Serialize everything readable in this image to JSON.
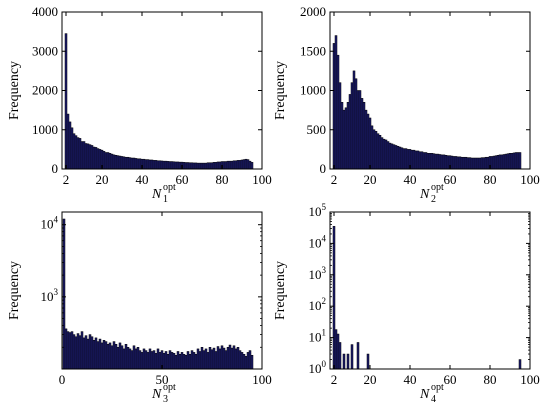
{
  "chart_data": [
    {
      "type": "bar",
      "ylabel": "Frequency",
      "xlabel_base": "N",
      "xlabel_sub": "1",
      "xlabel_sup": "opt",
      "xlim": [
        0,
        100
      ],
      "ylim": [
        0,
        4000
      ],
      "yscale": "linear",
      "xticks": [
        "2",
        "20",
        "40",
        "60",
        "80",
        "100"
      ],
      "yticks": [
        "0",
        "1000",
        "2000",
        "3000",
        "4000"
      ],
      "bar_color": "#1c1c6e",
      "x": [
        2,
        3,
        4,
        5,
        6,
        7,
        8,
        9,
        10,
        11,
        12,
        13,
        14,
        15,
        16,
        17,
        18,
        19,
        20,
        21,
        22,
        23,
        24,
        25,
        26,
        27,
        28,
        29,
        30,
        31,
        32,
        33,
        34,
        35,
        36,
        37,
        38,
        39,
        40,
        41,
        42,
        43,
        44,
        45,
        46,
        47,
        48,
        49,
        50,
        51,
        52,
        53,
        54,
        55,
        56,
        57,
        58,
        59,
        60,
        61,
        62,
        63,
        64,
        65,
        66,
        67,
        68,
        69,
        70,
        71,
        72,
        73,
        74,
        75,
        76,
        77,
        78,
        79,
        80,
        81,
        82,
        83,
        84,
        85,
        86,
        87,
        88,
        89,
        90,
        91,
        92,
        93,
        94,
        95
      ],
      "values": [
        3450,
        1400,
        1200,
        1050,
        900,
        850,
        800,
        780,
        700,
        700,
        650,
        640,
        620,
        600,
        560,
        550,
        520,
        500,
        480,
        450,
        420,
        420,
        400,
        380,
        360,
        350,
        340,
        330,
        320,
        310,
        300,
        300,
        290,
        280,
        280,
        270,
        260,
        260,
        250,
        250,
        240,
        240,
        230,
        230,
        220,
        220,
        210,
        210,
        205,
        200,
        200,
        195,
        190,
        190,
        185,
        180,
        180,
        175,
        175,
        170,
        165,
        165,
        160,
        160,
        155,
        155,
        150,
        150,
        150,
        150,
        150,
        160,
        160,
        160,
        170,
        170,
        180,
        180,
        190,
        190,
        190,
        200,
        200,
        200,
        210,
        210,
        220,
        220,
        230,
        240,
        250,
        240,
        200,
        170
      ]
    },
    {
      "type": "bar",
      "ylabel": "Frequency",
      "xlabel_base": "N",
      "xlabel_sub": "2",
      "xlabel_sup": "opt",
      "xlim": [
        0,
        100
      ],
      "ylim": [
        0,
        2000
      ],
      "yscale": "linear",
      "xticks": [
        "2",
        "20",
        "40",
        "60",
        "80",
        "100"
      ],
      "yticks": [
        "0",
        "500",
        "1000",
        "1500",
        "2000"
      ],
      "bar_color": "#1c1c6e",
      "x": [
        2,
        3,
        4,
        5,
        6,
        7,
        8,
        9,
        10,
        11,
        12,
        13,
        14,
        15,
        16,
        17,
        18,
        19,
        20,
        21,
        22,
        23,
        24,
        25,
        26,
        27,
        28,
        29,
        30,
        31,
        32,
        33,
        34,
        35,
        36,
        37,
        38,
        39,
        40,
        41,
        42,
        43,
        44,
        45,
        46,
        47,
        48,
        49,
        50,
        51,
        52,
        53,
        54,
        55,
        56,
        57,
        58,
        59,
        60,
        61,
        62,
        63,
        64,
        65,
        66,
        67,
        68,
        69,
        70,
        71,
        72,
        73,
        74,
        75,
        76,
        77,
        78,
        79,
        80,
        81,
        82,
        83,
        84,
        85,
        86,
        87,
        88,
        89,
        90,
        91,
        92,
        93,
        94,
        95
      ],
      "values": [
        1600,
        1700,
        1450,
        1100,
        850,
        750,
        780,
        850,
        950,
        1100,
        1250,
        1150,
        1000,
        1000,
        900,
        850,
        750,
        700,
        650,
        550,
        500,
        480,
        450,
        430,
        400,
        380,
        370,
        350,
        330,
        320,
        310,
        300,
        290,
        280,
        270,
        260,
        260,
        250,
        250,
        240,
        240,
        230,
        230,
        220,
        220,
        210,
        210,
        200,
        200,
        200,
        195,
        190,
        190,
        185,
        180,
        180,
        175,
        170,
        170,
        165,
        160,
        160,
        155,
        155,
        150,
        150,
        150,
        145,
        145,
        140,
        140,
        140,
        140,
        140,
        145,
        145,
        150,
        150,
        160,
        160,
        165,
        170,
        175,
        180,
        180,
        185,
        190,
        195,
        200,
        200,
        205,
        210,
        210,
        210
      ]
    },
    {
      "type": "bar",
      "ylabel": "Frequency",
      "xlabel_base": "N",
      "xlabel_sub": "3",
      "xlabel_sup": "opt",
      "xlim": [
        0,
        100
      ],
      "ylim": [
        100,
        15000
      ],
      "yscale": "log",
      "xticks": [
        "0",
        "50",
        "100"
      ],
      "yticks": [
        {
          "base": "10",
          "exp": "3",
          "value": 1000
        },
        {
          "base": "10",
          "exp": "4",
          "value": 10000
        }
      ],
      "bar_color": "#1c1c6e",
      "x": [
        1,
        2,
        3,
        4,
        5,
        6,
        7,
        8,
        9,
        10,
        11,
        12,
        13,
        14,
        15,
        16,
        17,
        18,
        19,
        20,
        21,
        22,
        23,
        24,
        25,
        26,
        27,
        28,
        29,
        30,
        31,
        32,
        33,
        34,
        35,
        36,
        37,
        38,
        39,
        40,
        41,
        42,
        43,
        44,
        45,
        46,
        47,
        48,
        49,
        50,
        51,
        52,
        53,
        54,
        55,
        56,
        57,
        58,
        59,
        60,
        61,
        62,
        63,
        64,
        65,
        66,
        67,
        68,
        69,
        70,
        71,
        72,
        73,
        74,
        75,
        76,
        77,
        78,
        79,
        80,
        81,
        82,
        83,
        84,
        85,
        86,
        87,
        88,
        89,
        90,
        91,
        92,
        93,
        94,
        95
      ],
      "values": [
        12000,
        360,
        330,
        320,
        330,
        300,
        280,
        310,
        290,
        330,
        270,
        290,
        260,
        300,
        280,
        250,
        270,
        240,
        260,
        230,
        250,
        240,
        220,
        230,
        210,
        240,
        220,
        200,
        230,
        210,
        190,
        220,
        200,
        190,
        180,
        210,
        190,
        200,
        180,
        170,
        190,
        180,
        170,
        190,
        175,
        180,
        165,
        190,
        170,
        180,
        165,
        175,
        160,
        180,
        170,
        165,
        155,
        175,
        160,
        170,
        160,
        155,
        175,
        160,
        180,
        170,
        160,
        190,
        175,
        200,
        180,
        190,
        170,
        200,
        185,
        195,
        175,
        205,
        190,
        210,
        195,
        180,
        200,
        215,
        195,
        210,
        190,
        200,
        180,
        170,
        160,
        150,
        170,
        180,
        155
      ]
    },
    {
      "type": "bar",
      "ylabel": "Frequency",
      "xlabel_base": "N",
      "xlabel_sub": "4",
      "xlabel_sup": "opt",
      "xlim": [
        0,
        100
      ],
      "ylim": [
        1,
        100000
      ],
      "yscale": "log",
      "xticks": [
        "2",
        "20",
        "40",
        "60",
        "80",
        "100"
      ],
      "yticks": [
        {
          "base": "10",
          "exp": "0",
          "value": 1
        },
        {
          "base": "10",
          "exp": "1",
          "value": 10
        },
        {
          "base": "10",
          "exp": "2",
          "value": 100
        },
        {
          "base": "10",
          "exp": "3",
          "value": 1000
        },
        {
          "base": "10",
          "exp": "4",
          "value": 10000
        },
        {
          "base": "10",
          "exp": "5",
          "value": 100000
        }
      ],
      "bar_color": "#1c1c6e",
      "x": [
        2,
        3,
        4,
        5,
        7,
        9,
        11,
        14,
        19,
        95
      ],
      "values": [
        35000,
        18,
        13,
        7,
        3,
        3,
        6,
        7,
        3,
        2
      ]
    }
  ]
}
